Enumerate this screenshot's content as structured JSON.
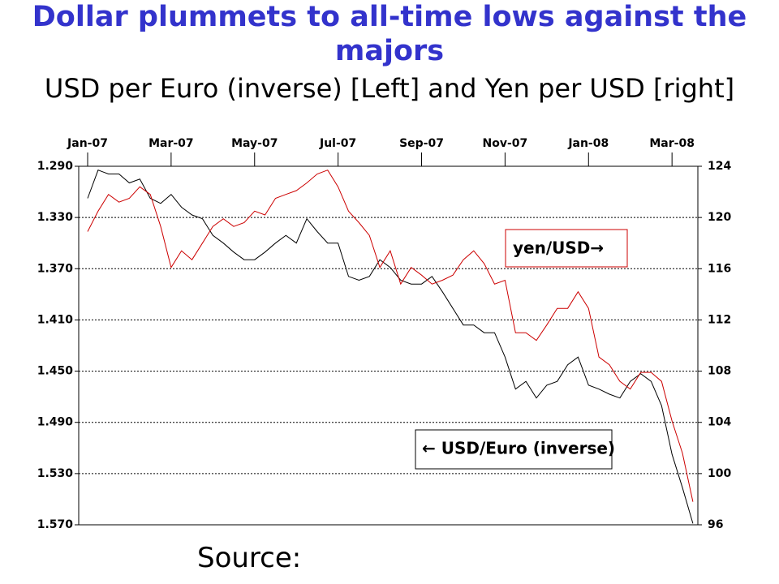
{
  "chart_data": {
    "type": "line",
    "title": "Dollar plummets to all-time lows against the majors",
    "subtitle": "USD per Euro (inverse) [Left] and Yen per USD [right]",
    "source": "Source:",
    "categories": [
      "Jan-07",
      null,
      null,
      null,
      null,
      null,
      null,
      null,
      "Mar-07",
      null,
      null,
      null,
      null,
      null,
      null,
      null,
      "May-07",
      null,
      null,
      null,
      null,
      null,
      null,
      null,
      "Jul-07",
      null,
      null,
      null,
      null,
      null,
      null,
      null,
      "Sep-07",
      null,
      null,
      null,
      null,
      null,
      null,
      null,
      "Nov-07",
      null,
      null,
      null,
      null,
      null,
      null,
      null,
      "Jan-08",
      null,
      null,
      null,
      null,
      null,
      null,
      null,
      "Mar-08",
      null,
      null
    ],
    "ylim": [
      1.57,
      1.29
    ],
    "yticks": [
      {
        "value": 1.29,
        "label": "1.290"
      },
      {
        "value": 1.33,
        "label": "1.330"
      },
      {
        "value": 1.37,
        "label": "1.370"
      },
      {
        "value": 1.41,
        "label": "1.410"
      },
      {
        "value": 1.45,
        "label": "1.450"
      },
      {
        "value": 1.49,
        "label": "1.490"
      },
      {
        "value": 1.53,
        "label": "1.530"
      },
      {
        "value": 1.57,
        "label": "1.570"
      }
    ],
    "y2lim": [
      96,
      124
    ],
    "y2ticks": [
      96,
      100,
      104,
      108,
      112,
      116,
      120,
      124
    ],
    "grid": true,
    "series": [
      {
        "name": "← USD/Euro (inverse)",
        "color": "#000000",
        "axis": "y",
        "values": [
          1.315,
          1.293,
          1.296,
          1.296,
          1.303,
          1.3,
          1.315,
          1.319,
          1.312,
          1.322,
          1.328,
          1.331,
          1.344,
          1.35,
          1.357,
          1.363,
          1.363,
          1.357,
          1.35,
          1.344,
          1.35,
          1.331,
          1.341,
          1.35,
          1.35,
          1.376,
          1.379,
          1.376,
          1.363,
          1.369,
          1.379,
          1.382,
          1.382,
          1.376,
          1.388,
          1.401,
          1.414,
          1.414,
          1.42,
          1.42,
          1.439,
          1.464,
          1.458,
          1.471,
          1.461,
          1.458,
          1.445,
          1.439,
          1.461,
          1.464,
          1.468,
          1.471,
          1.458,
          1.452,
          1.458,
          1.477,
          1.515,
          1.541,
          1.569
        ]
      },
      {
        "name": "yen/USD→",
        "color": "#cc0000",
        "axis": "y2",
        "values": [
          118.9,
          120.5,
          121.8,
          121.2,
          121.5,
          122.4,
          121.8,
          119.3,
          116.1,
          117.4,
          116.7,
          118.0,
          119.3,
          119.9,
          119.3,
          119.6,
          120.5,
          120.2,
          121.5,
          121.8,
          122.1,
          122.7,
          123.4,
          123.7,
          122.4,
          120.5,
          119.6,
          118.6,
          116.1,
          117.4,
          114.8,
          116.1,
          115.5,
          114.8,
          115.1,
          115.5,
          116.7,
          117.4,
          116.4,
          114.8,
          115.1,
          111.0,
          111.0,
          110.4,
          111.6,
          112.9,
          112.9,
          114.2,
          112.9,
          109.1,
          108.5,
          107.2,
          106.6,
          107.9,
          107.9,
          107.2,
          104.1,
          101.6,
          97.8
        ]
      }
    ]
  }
}
